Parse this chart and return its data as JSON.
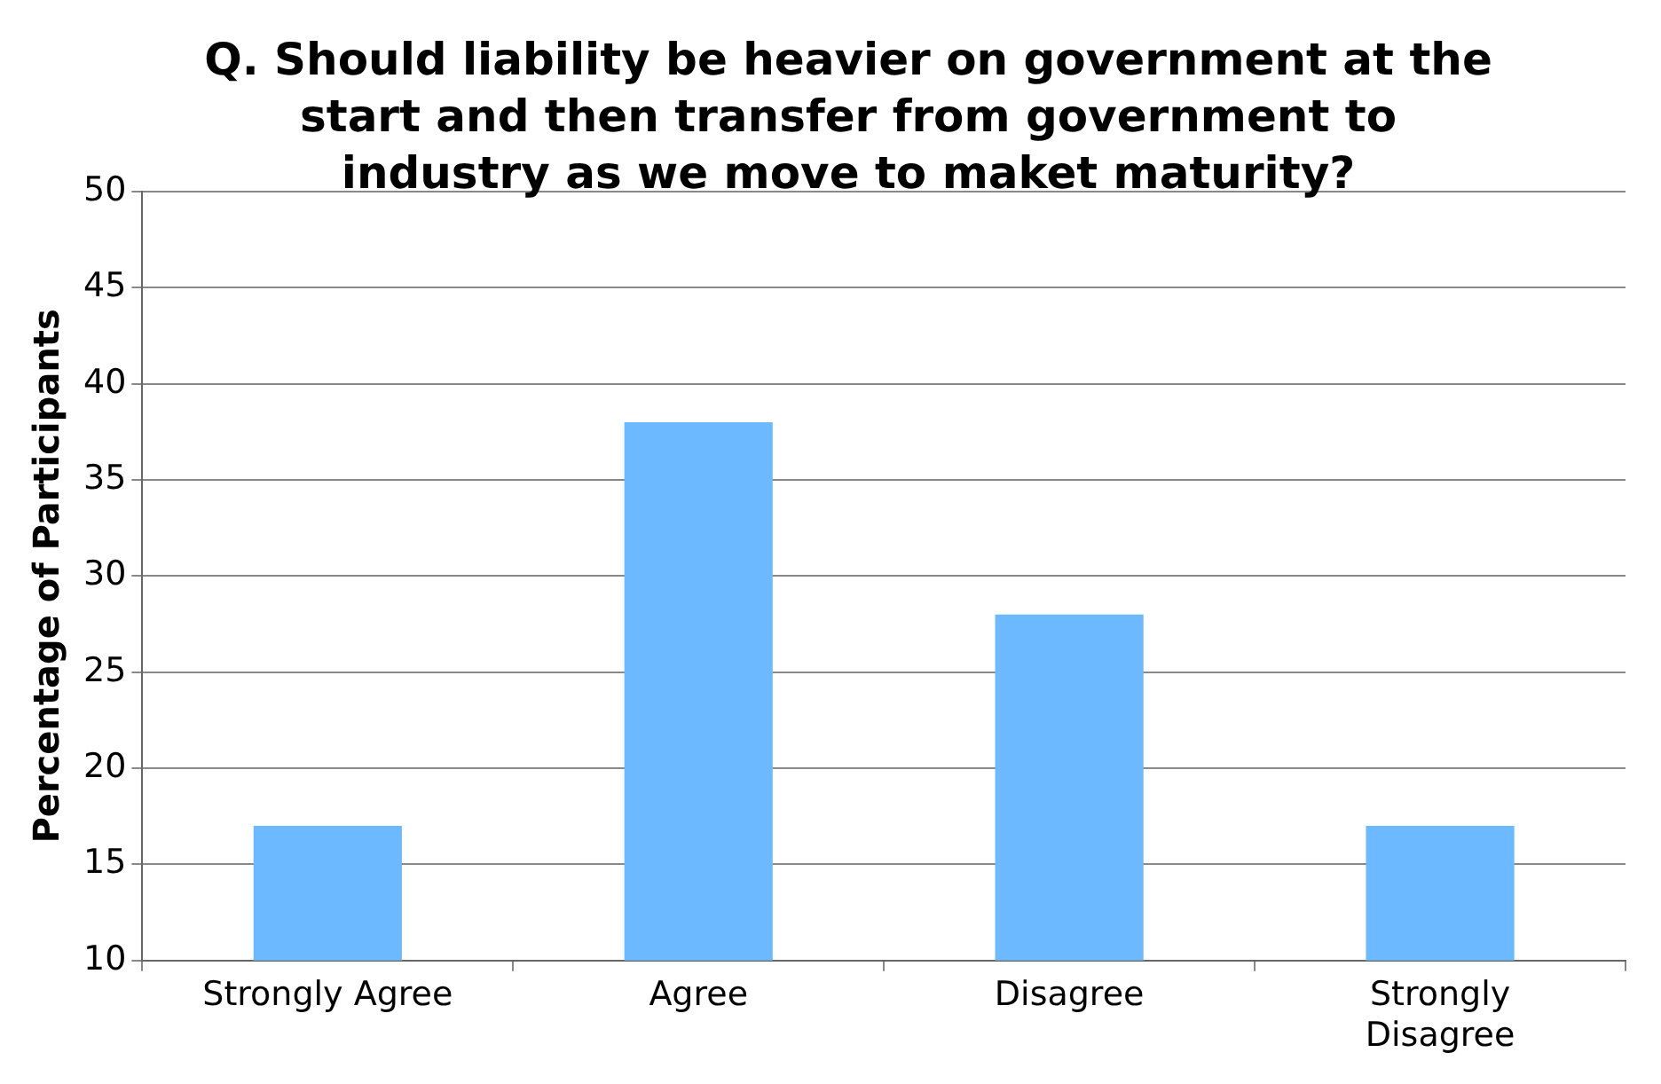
{
  "chart_data": {
    "type": "bar",
    "title": "Q. Should liability be heavier on government at the start and then transfer from government to industry as we move to maket maturity?",
    "ylabel": "Percentage of Participants",
    "categories": [
      "Strongly Agree",
      "Agree",
      "Disagree",
      "Strongly Disagree"
    ],
    "values": [
      17,
      38,
      28,
      17
    ],
    "color": "#6db9ff",
    "ylim": [
      10,
      50
    ],
    "yticks": [
      10,
      15,
      20,
      25,
      30,
      35,
      40,
      45,
      50
    ],
    "grid": "y",
    "legend": false
  }
}
